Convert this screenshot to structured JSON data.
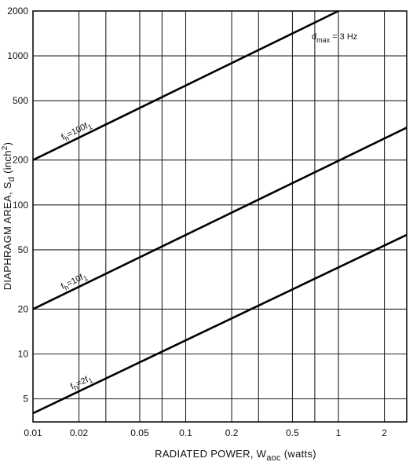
{
  "chart_data": {
    "type": "line",
    "xlabel": "RADIATED POWER, W",
    "xlabel_sub": "aoc",
    "xlabel_suffix": " (watts)",
    "ylabel": "DIAPHRAGM AREA, S",
    "ylabel_sub": "d",
    "ylabel_suffix": " (inch",
    "ylabel_sup": "2",
    "ylabel_close": ")",
    "x_scale": "log",
    "y_scale": "log",
    "xlim": [
      0.01,
      2.8
    ],
    "ylim": [
      3.5,
      2000
    ],
    "grid": true,
    "x_ticks": [
      0.01,
      0.02,
      0.05,
      0.1,
      0.2,
      0.5,
      1,
      2
    ],
    "x_tick_labels": [
      "0.01",
      "0.02",
      "0.05",
      "0.1",
      "0.2",
      "0.5",
      "1",
      "2"
    ],
    "y_ticks": [
      5,
      10,
      20,
      50,
      100,
      200,
      500,
      1000,
      2000
    ],
    "y_tick_labels": [
      "5",
      "10",
      "20",
      "50",
      "100",
      "200",
      "500",
      "1000",
      "2000"
    ],
    "x_grid": [
      0.01,
      0.02,
      0.03,
      0.05,
      0.07,
      0.1,
      0.2,
      0.3,
      0.5,
      0.7,
      1,
      2
    ],
    "y_grid": [
      5,
      10,
      20,
      50,
      100,
      200,
      500,
      1000,
      2000
    ],
    "annotation": {
      "main": "d",
      "sub": "max",
      "rest": " = 3 Hz"
    },
    "series": [
      {
        "label_f": "f",
        "label_sub": "h",
        "label_rest": "=100f",
        "label_tail_sub": "1",
        "x": [
          0.01,
          1.0
        ],
        "y": [
          200,
          2000
        ]
      },
      {
        "label_f": "f",
        "label_sub": "h",
        "label_rest": "=10f",
        "label_tail_sub": "1",
        "x": [
          0.01,
          2.8
        ],
        "y": [
          20,
          330
        ]
      },
      {
        "label_f": "f",
        "label_sub": "h",
        "label_rest": "=2f",
        "label_tail_sub": "1",
        "x": [
          0.01,
          2.8
        ],
        "y": [
          4,
          63
        ]
      }
    ]
  }
}
